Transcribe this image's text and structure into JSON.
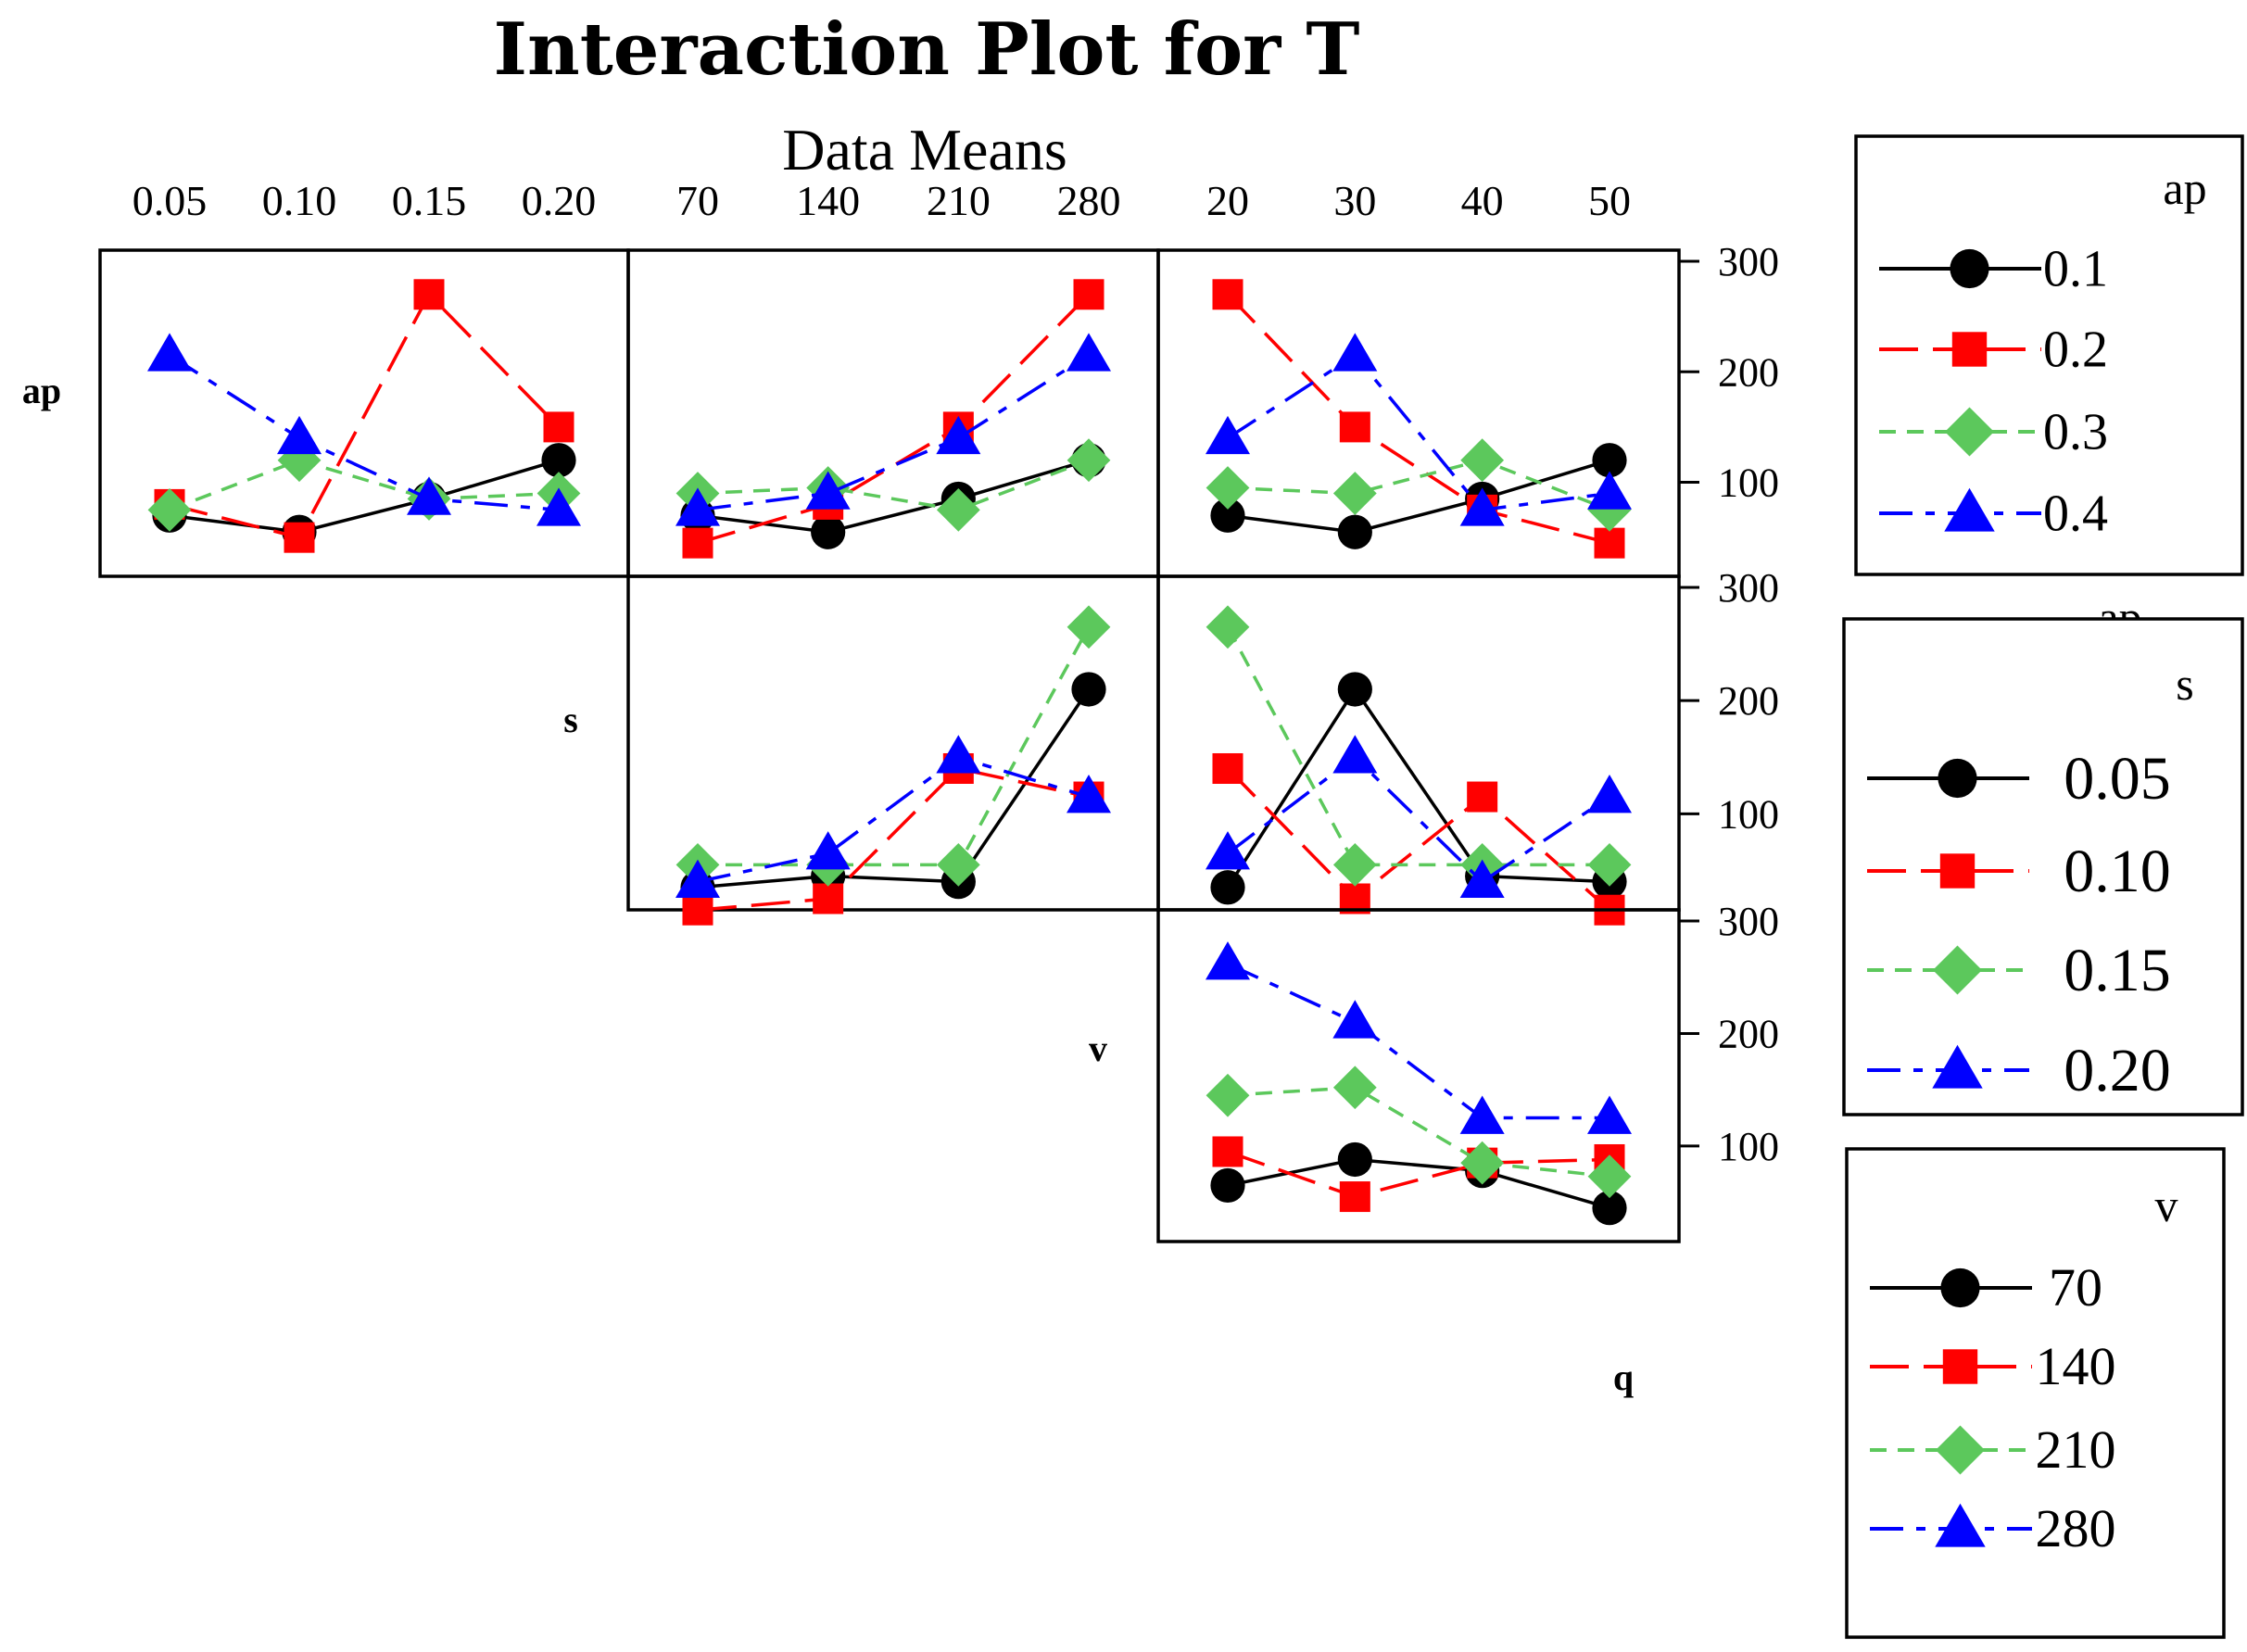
{
  "title": "Interaction Plot for T",
  "subtitle": "Data Means",
  "colors": {
    "series_1": "#000000",
    "series_2": "#ff0000",
    "series_3": "#5cc85c",
    "series_4": "#0000ff"
  },
  "factors": {
    "ap": {
      "label": "ap",
      "levels": [
        "0.05",
        "0.10",
        "0.15",
        "0.20"
      ]
    },
    "s": {
      "label": "s",
      "levels": [
        "70",
        "140",
        "210",
        "280"
      ]
    },
    "v": {
      "label": "v",
      "levels": [
        "20",
        "30",
        "40",
        "50"
      ]
    },
    "q": {
      "label": "q"
    }
  },
  "y_ticks": [
    "100",
    "200",
    "300"
  ],
  "chart_data": {
    "type": "line",
    "title": "Interaction Plot for T",
    "subtitle": "Data Means",
    "ylim": [
      25,
      300
    ],
    "panels": [
      {
        "row": "ap",
        "col": "ap",
        "series": [
          {
            "name": "0.1",
            "values": [
              70,
              55,
              85,
              120
            ]
          },
          {
            "name": "0.2",
            "values": [
              80,
              50,
              270,
              150
            ]
          },
          {
            "name": "0.3",
            "values": [
              75,
              120,
              85,
              90
            ]
          },
          {
            "name": "0.4",
            "values": [
              215,
              140,
              85,
              75
            ]
          }
        ]
      },
      {
        "row": "ap",
        "col": "s",
        "series": [
          {
            "name": "0.1",
            "values": [
              70,
              55,
              85,
              120
            ]
          },
          {
            "name": "0.2",
            "values": [
              45,
              80,
              150,
              270
            ]
          },
          {
            "name": "0.3",
            "values": [
              90,
              95,
              75,
              120
            ]
          },
          {
            "name": "0.4",
            "values": [
              75,
              90,
              140,
              215
            ]
          }
        ]
      },
      {
        "row": "ap",
        "col": "v",
        "series": [
          {
            "name": "0.1",
            "values": [
              70,
              55,
              85,
              120
            ]
          },
          {
            "name": "0.2",
            "values": [
              270,
              150,
              75,
              45
            ]
          },
          {
            "name": "0.3",
            "values": [
              95,
              90,
              120,
              75
            ]
          },
          {
            "name": "0.4",
            "values": [
              140,
              215,
              75,
              90
            ]
          }
        ]
      },
      {
        "row": "s",
        "col": "s",
        "series": [
          {
            "name": "0.05",
            "values": [
              35,
              45,
              40,
              210
            ]
          },
          {
            "name": "0.10",
            "values": [
              15,
              25,
              140,
              115
            ]
          },
          {
            "name": "0.15",
            "values": [
              55,
              55,
              55,
              265
            ]
          },
          {
            "name": "0.20",
            "values": [
              40,
              65,
              150,
              115
            ]
          }
        ]
      },
      {
        "row": "s",
        "col": "v",
        "series": [
          {
            "name": "0.05",
            "values": [
              35,
              210,
              45,
              40
            ]
          },
          {
            "name": "0.10",
            "values": [
              140,
              25,
              115,
              15
            ]
          },
          {
            "name": "0.15",
            "values": [
              265,
              55,
              55,
              55
            ]
          },
          {
            "name": "0.20",
            "values": [
              65,
              150,
              40,
              115
            ]
          }
        ]
      },
      {
        "row": "v",
        "col": "v",
        "series": [
          {
            "name": "70",
            "values": [
              65,
              88,
              78,
              45
            ]
          },
          {
            "name": "140",
            "values": [
              95,
              55,
              85,
              88
            ]
          },
          {
            "name": "210",
            "values": [
              145,
              152,
              85,
              73
            ]
          },
          {
            "name": "280",
            "values": [
              262,
              210,
              125,
              125
            ]
          }
        ]
      }
    ]
  },
  "legends": [
    {
      "title": "ap",
      "entries": [
        "0.1",
        "0.2",
        "0.3",
        "0.4"
      ],
      "overlap_text": "ap"
    },
    {
      "title": "s",
      "entries": [
        "0.05",
        "0.10",
        "0.15",
        "0.20"
      ]
    },
    {
      "title": "v",
      "entries": [
        "70",
        "140",
        "210",
        "280"
      ]
    }
  ]
}
